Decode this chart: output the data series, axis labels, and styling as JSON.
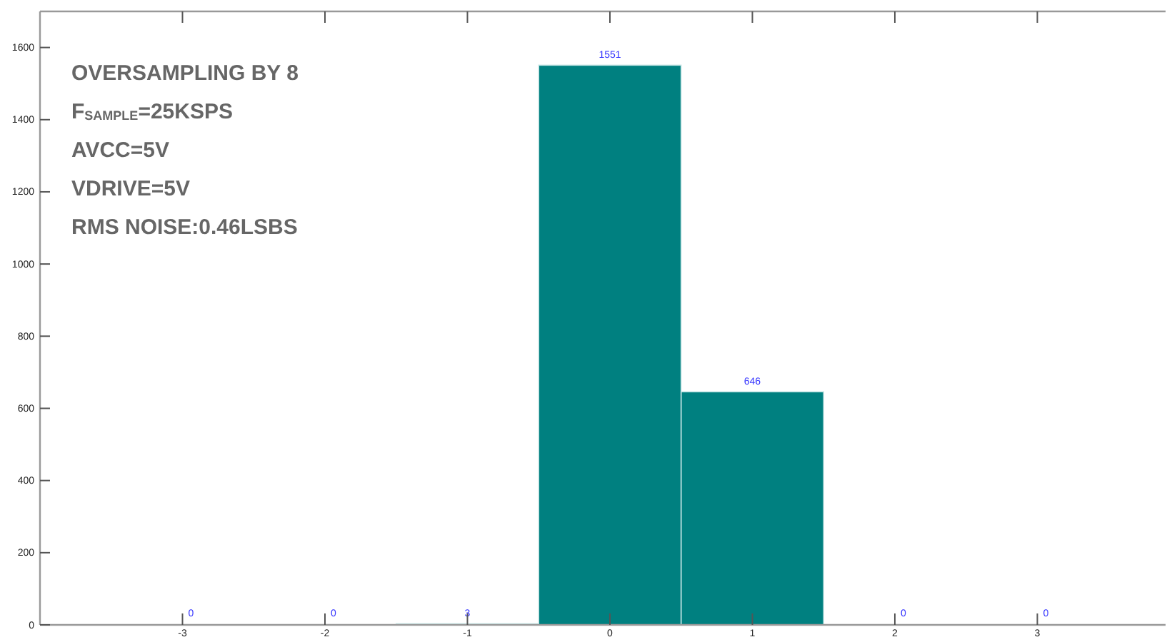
{
  "chart_data": {
    "type": "histogram",
    "bins": [
      -3.5,
      -2.5,
      -1.5,
      -0.5,
      0.5,
      1.5,
      2.5,
      3.5
    ],
    "values": [
      0,
      0,
      3,
      1551,
      646,
      0,
      0
    ],
    "color": "#008080",
    "data_labels": true,
    "xlim": [
      -4,
      3.9
    ],
    "xticks": [
      -3,
      -2,
      -1,
      0,
      1,
      2,
      3
    ],
    "ylim": [
      0,
      1700
    ],
    "yticks": [
      0,
      200,
      400,
      600,
      800,
      1000,
      1200,
      1400,
      1600
    ],
    "grid": false,
    "legend": false,
    "annotations": [
      "OVERSAMPLING BY 8",
      "F$_{SAMPLE}$=25KSPS",
      "AVCC=5V",
      "VDRIVE=5V",
      "RMS NOISE:0.46LSBS"
    ]
  }
}
